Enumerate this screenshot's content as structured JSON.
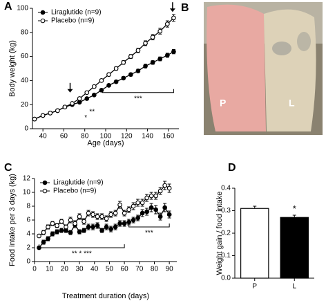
{
  "chart_data": [
    {
      "type": "line",
      "panel": "A",
      "xlabel": "Age (days)",
      "ylabel": "Body weight (kg)",
      "xlim": [
        30,
        170
      ],
      "xticks": [
        40,
        60,
        80,
        100,
        120,
        140,
        160
      ],
      "ylim": [
        0,
        100
      ],
      "yticks": [
        0,
        20,
        40,
        60,
        80,
        100
      ],
      "legend": "upper left",
      "x": [
        32,
        40,
        47,
        54,
        61,
        68,
        75,
        82,
        89,
        96,
        103,
        110,
        117,
        124,
        131,
        138,
        145,
        152,
        159,
        165
      ],
      "series": [
        {
          "name": "Liraglutide (n=9)",
          "color": "#000000",
          "fill": "#000000",
          "values": [
            8,
            11,
            13,
            15,
            18,
            20,
            22,
            25,
            28,
            32,
            36,
            39,
            42,
            45,
            48,
            52,
            55,
            58,
            61,
            64
          ],
          "errors": [
            0.5,
            0.5,
            0.6,
            0.6,
            0.7,
            0.8,
            0.8,
            0.9,
            1,
            1,
            1.1,
            1.2,
            1.2,
            1.3,
            1.4,
            1.5,
            1.5,
            1.6,
            1.7,
            1.8
          ]
        },
        {
          "name": "Placebo (n=9)",
          "color": "#000000",
          "fill": "#ffffff",
          "values": [
            8,
            11,
            13,
            15,
            18,
            21,
            25,
            30,
            35,
            40,
            45,
            50,
            55,
            60,
            65,
            71,
            76,
            81,
            87,
            92
          ],
          "errors": [
            0.5,
            0.5,
            0.6,
            0.6,
            0.7,
            0.8,
            0.9,
            1,
            1.1,
            1.2,
            1.3,
            1.4,
            1.5,
            1.6,
            1.8,
            2,
            2.2,
            2.4,
            2.6,
            2.8
          ]
        }
      ],
      "annotations": [
        {
          "text": "*",
          "x": 81,
          "y": 9
        },
        {
          "text": "**",
          "x": 87,
          "y": 14
        }
      ],
      "arrows": [
        {
          "x": 66,
          "y": 30
        },
        {
          "x": 164,
          "y": 97
        }
      ],
      "brackets": [
        {
          "x": [
            97,
            165
          ],
          "y": 30,
          "text": "***"
        }
      ]
    },
    {
      "type": "line",
      "panel": "C",
      "xlabel": "Treatment duration (days)",
      "ylabel": "Food intake per 3 days (kg)",
      "xlim": [
        0,
        95
      ],
      "xticks": [
        0,
        10,
        20,
        30,
        40,
        50,
        60,
        70,
        80,
        90
      ],
      "ylim": [
        0,
        12
      ],
      "yticks": [
        0,
        2,
        4,
        6,
        8,
        10,
        12
      ],
      "legend": "upper left",
      "x": [
        3,
        6,
        9,
        12,
        15,
        18,
        21,
        24,
        27,
        30,
        33,
        36,
        39,
        42,
        45,
        48,
        51,
        54,
        57,
        60,
        63,
        66,
        69,
        72,
        75,
        78,
        81,
        84,
        87,
        90
      ],
      "series": [
        {
          "name": "Liraglutide (n=9)",
          "color": "#000000",
          "fill": "#000000",
          "values": [
            2.0,
            2.8,
            3.3,
            4.0,
            4.3,
            4.5,
            4.5,
            4.2,
            5.3,
            4.3,
            4.5,
            5.0,
            5.0,
            5.2,
            4.5,
            5.0,
            4.7,
            5.0,
            5.5,
            5.5,
            5.7,
            6.0,
            6.3,
            7.0,
            7.2,
            7.8,
            7.5,
            6.5,
            7.8,
            6.8
          ],
          "errors": [
            0.2,
            0.3,
            0.3,
            0.3,
            0.3,
            0.3,
            0.3,
            0.3,
            0.4,
            0.3,
            0.3,
            0.4,
            0.4,
            0.4,
            0.3,
            0.4,
            0.4,
            0.4,
            0.4,
            0.4,
            0.4,
            0.4,
            0.4,
            0.5,
            0.5,
            0.6,
            0.6,
            0.5,
            0.6,
            0.5
          ]
        },
        {
          "name": "Placebo (n=9)",
          "color": "#000000",
          "fill": "#ffffff",
          "values": [
            3.7,
            4.2,
            5.0,
            5.5,
            5.2,
            5.8,
            5.0,
            6.0,
            5.5,
            6.5,
            5.8,
            7.0,
            6.8,
            6.5,
            6.5,
            6.2,
            6.8,
            7.0,
            8.2,
            7.0,
            7.5,
            8.0,
            8.5,
            8.5,
            9.2,
            9.5,
            9.5,
            10.2,
            11.0,
            10.6
          ],
          "errors": [
            0.2,
            0.3,
            0.3,
            0.3,
            0.3,
            0.3,
            0.3,
            0.4,
            0.4,
            0.4,
            0.4,
            0.4,
            0.4,
            0.4,
            0.4,
            0.4,
            0.4,
            0.4,
            0.5,
            0.4,
            0.4,
            0.5,
            0.5,
            0.5,
            0.5,
            0.5,
            0.5,
            0.5,
            0.6,
            0.6
          ]
        }
      ],
      "annotations": [],
      "arrows": [],
      "brackets": [
        {
          "x": [
            3,
            60
          ],
          "y": 2.0,
          "text": "** * ***"
        },
        {
          "x": [
            63,
            90
          ],
          "y": 5.0,
          "text": "***"
        }
      ]
    },
    {
      "type": "bar",
      "panel": "D",
      "ylabel": "Weight gain / food intake",
      "categories": [
        "P",
        "L"
      ],
      "values": [
        0.31,
        0.27
      ],
      "errors": [
        0.01,
        0.01
      ],
      "colors": [
        "#ffffff",
        "#000000"
      ],
      "ylim": [
        0,
        0.4
      ],
      "yticks": [
        {
          "value": 0,
          "label": "0.0"
        },
        0.1,
        0.2,
        0.3,
        0.4
      ],
      "annotations": [
        {
          "text": "*",
          "x": 1,
          "y": 0.3
        }
      ]
    }
  ],
  "photo": {
    "panel": "B",
    "labels": [
      "P",
      "L"
    ]
  }
}
